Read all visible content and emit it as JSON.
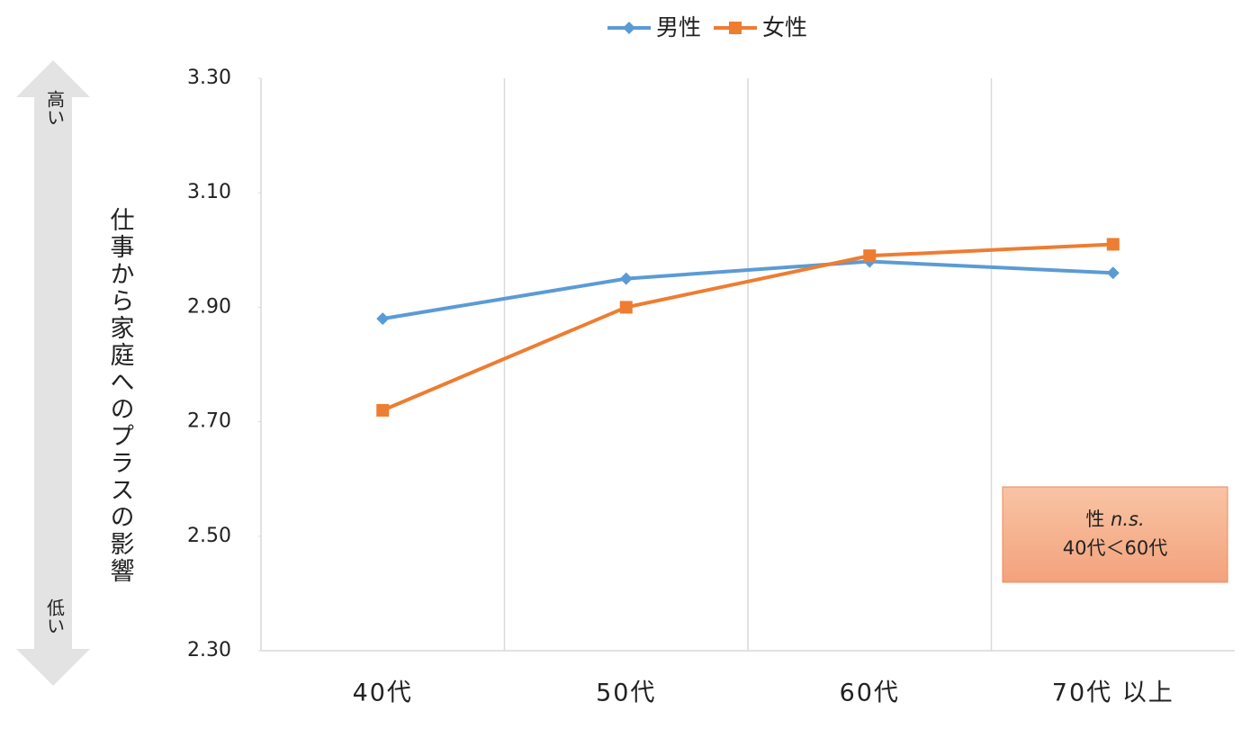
{
  "chart_data": {
    "type": "line",
    "y_label": "仕事から家庭へのプラスの影響",
    "y_high_label": "高い",
    "y_low_label": "低い",
    "categories": [
      "40代",
      "50代",
      "60代",
      "70代 以上"
    ],
    "series": [
      {
        "name": "男性",
        "color": "#5b9bd5",
        "marker": "diamond",
        "values": [
          2.88,
          2.95,
          2.98,
          2.96
        ]
      },
      {
        "name": "女性",
        "color": "#ed7d31",
        "marker": "square",
        "values": [
          2.72,
          2.9,
          2.99,
          3.01
        ]
      }
    ],
    "ylim": [
      2.3,
      3.3
    ],
    "yticks": [
      {
        "value": 2.3,
        "label": "2.30"
      },
      {
        "value": 2.5,
        "label": "2.50"
      },
      {
        "value": 2.7,
        "label": "2.70"
      },
      {
        "value": 2.9,
        "label": "2.90"
      },
      {
        "value": 3.1,
        "label": "3.10"
      },
      {
        "value": 3.3,
        "label": "3.30"
      }
    ],
    "annotation": {
      "lines": [
        [
          "性",
          "n.s."
        ],
        [
          "40代＜60代"
        ]
      ]
    },
    "legend": "top"
  }
}
